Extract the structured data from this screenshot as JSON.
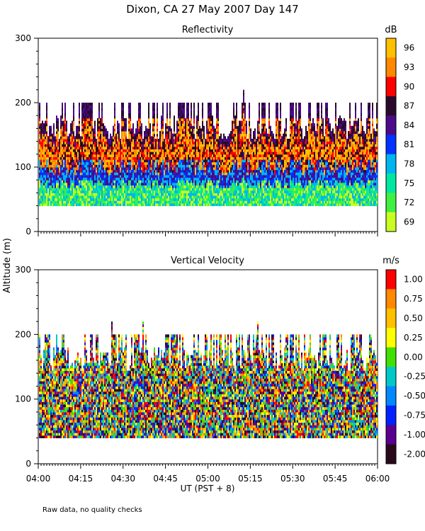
{
  "figure": {
    "title": "Dixon, CA 27 May 2007  Day 147",
    "ylabel": "Altitude  (m)",
    "xlabel": "UT  (PST + 8)",
    "note": "Raw data, no quality checks"
  },
  "chart_data": [
    {
      "type": "heatmap",
      "title": "Reflectivity",
      "ylabel": "Altitude  (m)",
      "xlabel": "UT  (PST + 8)",
      "ylim": [
        0,
        300
      ],
      "yticks": [
        "0",
        "100",
        "200",
        "300"
      ],
      "xticks": [
        "04:00",
        "04:15",
        "04:30",
        "04:45",
        "05:00",
        "05:15",
        "05:30",
        "05:45",
        "06:00"
      ],
      "xlim": [
        "04:00",
        "06:00"
      ],
      "colorbar": {
        "unit": "dB",
        "labels": [
          "96",
          "93",
          "90",
          "87",
          "84",
          "81",
          "78",
          "75",
          "72",
          "69"
        ],
        "colors": [
          "#ffc000",
          "#ff8800",
          "#ff0000",
          "#2a0a2a",
          "#4a0a8a",
          "#0033ff",
          "#00b4f0",
          "#00e8a0",
          "#40f040",
          "#c8ff20"
        ]
      },
      "data_extent": {
        "min_altitude": 40,
        "max_altitude": 220,
        "typical_top": 180
      }
    },
    {
      "type": "heatmap",
      "title": "Vertical Velocity",
      "ylabel": "Altitude  (m)",
      "xlabel": "UT  (PST + 8)",
      "ylim": [
        0,
        300
      ],
      "yticks": [
        "0",
        "100",
        "200",
        "300"
      ],
      "xticks": [
        "04:00",
        "04:15",
        "04:30",
        "04:45",
        "05:00",
        "05:15",
        "05:30",
        "05:45",
        "06:00"
      ],
      "xlim": [
        "04:00",
        "06:00"
      ],
      "colorbar": {
        "unit": "m/s",
        "labels": [
          "1.00",
          "0.75",
          "0.50",
          "0.25",
          "0.00",
          "-0.25",
          "-0.50",
          "-0.75",
          "-1.00",
          "-2.00"
        ],
        "colors": [
          "#ff0000",
          "#ff8800",
          "#ffc000",
          "#ffff00",
          "#40e000",
          "#00c8c8",
          "#0088ff",
          "#0022ff",
          "#5a0090",
          "#2a0a1a"
        ]
      },
      "data_extent": {
        "min_altitude": 40,
        "max_altitude": 220,
        "typical_top": 180
      }
    }
  ]
}
